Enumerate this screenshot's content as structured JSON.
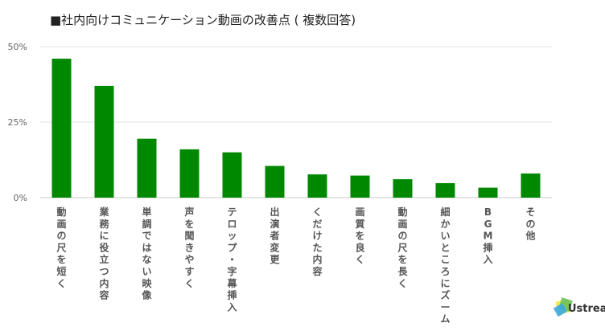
{
  "chart_data": {
    "type": "bar",
    "title": "■社内向けコミュニケーション動画の改善点 ( 複数回答)",
    "categories": [
      "動画の尺を短く",
      "業務に役立つ内容",
      "単調ではない映像",
      "声を聞きやすく",
      "テロップ・字幕挿入",
      "出演者変更",
      "くだけた内容",
      "画質を良く",
      "動画の尺を長く",
      "細かいところにズーム",
      "BGM挿入",
      "その他"
    ],
    "values": [
      46,
      37,
      19.5,
      16,
      15,
      10.5,
      7.7,
      7.3,
      6.1,
      4.8,
      3.3,
      8
    ],
    "ylim": [
      0,
      50
    ],
    "yticks": [
      0,
      25,
      50
    ],
    "ytick_labels": [
      "0%",
      "25%",
      "50%"
    ],
    "xlabel": "",
    "ylabel": "",
    "grid": true,
    "bar_color": "#008800"
  },
  "brand": {
    "text": "Ustream",
    "icon": "ustream-logo-icon",
    "colors": [
      "#f6e84a",
      "#6cc25a",
      "#3aa9e0"
    ]
  }
}
